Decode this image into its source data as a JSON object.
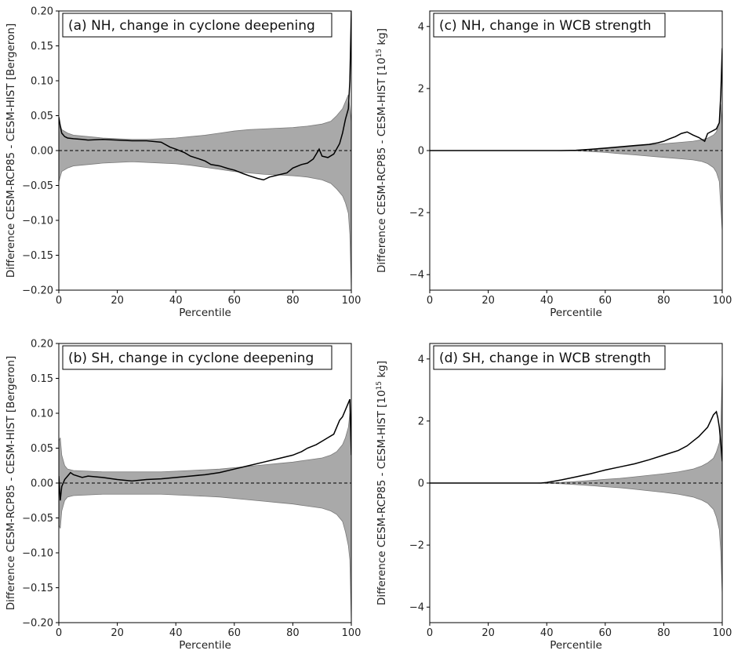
{
  "chart_data": [
    {
      "type": "line",
      "panel": "a",
      "title": "(a) NH, change in cyclone deepening",
      "xlabel": "Percentile",
      "ylabel": "Difference CESM-RCP85 - CESM-HIST [Bergeron]",
      "ylabel_sup": "",
      "ylabel_unit": "",
      "xlim": [
        0,
        100
      ],
      "ylim": [
        -0.2,
        0.2
      ],
      "xticks": [
        0,
        20,
        40,
        60,
        80,
        100
      ],
      "xtick_labels": [
        "0",
        "20",
        "40",
        "60",
        "80",
        "100"
      ],
      "yticks": [
        -0.2,
        -0.15,
        -0.1,
        -0.05,
        0.0,
        0.05,
        0.1,
        0.15,
        0.2
      ],
      "ytick_labels": [
        "−0.20",
        "−0.15",
        "−0.10",
        "−0.05",
        "0.00",
        "0.05",
        "0.10",
        "0.15",
        "0.20"
      ],
      "band": {
        "x": [
          0,
          1,
          3,
          5,
          10,
          15,
          20,
          25,
          30,
          35,
          40,
          45,
          50,
          55,
          60,
          65,
          70,
          75,
          80,
          85,
          90,
          93,
          95,
          97,
          98,
          99,
          99.5,
          100
        ],
        "upper": [
          0.045,
          0.03,
          0.025,
          0.022,
          0.02,
          0.018,
          0.017,
          0.016,
          0.016,
          0.017,
          0.018,
          0.02,
          0.022,
          0.025,
          0.028,
          0.03,
          0.031,
          0.032,
          0.033,
          0.035,
          0.038,
          0.042,
          0.05,
          0.06,
          0.07,
          0.08,
          0.06,
          0.04
        ],
        "lower": [
          -0.045,
          -0.03,
          -0.025,
          -0.022,
          -0.02,
          -0.018,
          -0.017,
          -0.016,
          -0.017,
          -0.018,
          -0.019,
          -0.021,
          -0.024,
          -0.027,
          -0.03,
          -0.032,
          -0.034,
          -0.035,
          -0.036,
          -0.038,
          -0.042,
          -0.047,
          -0.055,
          -0.065,
          -0.075,
          -0.09,
          -0.12,
          -0.2
        ]
      },
      "line": {
        "x": [
          0,
          0.5,
          1,
          2,
          3,
          5,
          8,
          10,
          15,
          20,
          25,
          30,
          35,
          38,
          40,
          43,
          45,
          48,
          50,
          52,
          55,
          58,
          60,
          63,
          65,
          68,
          70,
          72,
          75,
          78,
          80,
          83,
          85,
          87,
          88,
          89,
          90,
          92,
          94,
          96,
          97,
          98,
          99,
          99.5,
          100
        ],
        "y": [
          0.048,
          0.035,
          0.025,
          0.02,
          0.018,
          0.017,
          0.016,
          0.015,
          0.016,
          0.015,
          0.014,
          0.014,
          0.012,
          0.005,
          0.002,
          -0.003,
          -0.008,
          -0.012,
          -0.015,
          -0.02,
          -0.022,
          -0.026,
          -0.028,
          -0.033,
          -0.036,
          -0.04,
          -0.042,
          -0.038,
          -0.035,
          -0.032,
          -0.025,
          -0.02,
          -0.018,
          -0.012,
          -0.005,
          0.002,
          -0.008,
          -0.01,
          -0.005,
          0.01,
          0.025,
          0.045,
          0.06,
          0.1,
          0.2
        ]
      }
    },
    {
      "type": "line",
      "panel": "c",
      "title": "(c) NH, change in WCB strength",
      "xlabel": "Percentile",
      "ylabel": "Difference CESM-RCP85 - CESM-HIST [10",
      "ylabel_sup": "15",
      "ylabel_unit": " kg]",
      "xlim": [
        0,
        100
      ],
      "ylim": [
        -4.5,
        4.5
      ],
      "xticks": [
        0,
        20,
        40,
        60,
        80,
        100
      ],
      "xtick_labels": [
        "0",
        "20",
        "40",
        "60",
        "80",
        "100"
      ],
      "yticks": [
        -4,
        -2,
        0,
        2,
        4
      ],
      "ytick_labels": [
        "−4",
        "−2",
        "0",
        "2",
        "4"
      ],
      "band": {
        "x": [
          0,
          40,
          50,
          55,
          60,
          65,
          70,
          75,
          80,
          85,
          90,
          93,
          95,
          97,
          98,
          99,
          99.5,
          100
        ],
        "upper": [
          0.0,
          0.0,
          0.01,
          0.03,
          0.06,
          0.1,
          0.14,
          0.18,
          0.22,
          0.26,
          0.3,
          0.35,
          0.4,
          0.5,
          0.6,
          0.9,
          1.5,
          0.8
        ],
        "lower": [
          0.0,
          0.0,
          -0.01,
          -0.03,
          -0.06,
          -0.1,
          -0.14,
          -0.18,
          -0.22,
          -0.26,
          -0.3,
          -0.35,
          -0.42,
          -0.55,
          -0.7,
          -1.0,
          -1.8,
          -2.6
        ]
      },
      "line": {
        "x": [
          0,
          45,
          50,
          55,
          60,
          65,
          70,
          75,
          78,
          80,
          82,
          84,
          86,
          88,
          90,
          92,
          94,
          95,
          96,
          97,
          98,
          99,
          99.5,
          100
        ],
        "y": [
          0.0,
          0.0,
          0.01,
          0.04,
          0.08,
          0.12,
          0.16,
          0.2,
          0.25,
          0.3,
          0.38,
          0.45,
          0.55,
          0.6,
          0.5,
          0.42,
          0.3,
          0.55,
          0.6,
          0.65,
          0.7,
          0.9,
          1.8,
          3.3
        ]
      }
    },
    {
      "type": "line",
      "panel": "b",
      "title": "(b) SH, change in cyclone deepening",
      "xlabel": "Percentile",
      "ylabel": "Difference CESM-RCP85 - CESM-HIST [Bergeron]",
      "ylabel_sup": "",
      "ylabel_unit": "",
      "xlim": [
        0,
        100
      ],
      "ylim": [
        -0.2,
        0.2
      ],
      "xticks": [
        0,
        20,
        40,
        60,
        80,
        100
      ],
      "xtick_labels": [
        "0",
        "20",
        "40",
        "60",
        "80",
        "100"
      ],
      "yticks": [
        -0.2,
        -0.15,
        -0.1,
        -0.05,
        0.0,
        0.05,
        0.1,
        0.15,
        0.2
      ],
      "ytick_labels": [
        "−0.20",
        "−0.15",
        "−0.10",
        "−0.05",
        "0.00",
        "0.05",
        "0.10",
        "0.15",
        "0.20"
      ],
      "band": {
        "x": [
          0,
          0.5,
          1,
          2,
          3,
          5,
          10,
          15,
          20,
          25,
          30,
          35,
          40,
          45,
          50,
          55,
          60,
          65,
          70,
          75,
          80,
          85,
          90,
          93,
          95,
          97,
          98,
          99,
          99.5,
          100
        ],
        "upper": [
          0.06,
          0.065,
          0.04,
          0.025,
          0.02,
          0.018,
          0.017,
          0.016,
          0.016,
          0.016,
          0.016,
          0.016,
          0.017,
          0.018,
          0.019,
          0.02,
          0.022,
          0.024,
          0.026,
          0.028,
          0.03,
          0.033,
          0.036,
          0.04,
          0.045,
          0.055,
          0.065,
          0.08,
          0.1,
          0.04
        ],
        "lower": [
          -0.06,
          -0.065,
          -0.04,
          -0.025,
          -0.02,
          -0.018,
          -0.017,
          -0.016,
          -0.016,
          -0.016,
          -0.016,
          -0.016,
          -0.017,
          -0.018,
          -0.019,
          -0.02,
          -0.022,
          -0.024,
          -0.026,
          -0.028,
          -0.03,
          -0.033,
          -0.036,
          -0.04,
          -0.045,
          -0.055,
          -0.07,
          -0.09,
          -0.11,
          -0.2
        ]
      },
      "line": {
        "x": [
          0,
          0.5,
          1,
          2,
          3,
          4,
          5,
          8,
          10,
          15,
          20,
          25,
          30,
          35,
          40,
          45,
          50,
          55,
          60,
          63,
          65,
          70,
          75,
          80,
          83,
          85,
          88,
          90,
          92,
          94,
          95,
          96,
          97,
          98,
          99,
          99.5,
          100
        ],
        "y": [
          0.01,
          -0.025,
          -0.005,
          0.005,
          0.01,
          0.015,
          0.012,
          0.008,
          0.01,
          0.008,
          0.005,
          0.003,
          0.005,
          0.006,
          0.008,
          0.01,
          0.012,
          0.015,
          0.02,
          0.023,
          0.025,
          0.03,
          0.035,
          0.04,
          0.045,
          0.05,
          0.055,
          0.06,
          0.065,
          0.07,
          0.08,
          0.09,
          0.095,
          0.105,
          0.115,
          0.12,
          0.04
        ]
      }
    },
    {
      "type": "line",
      "panel": "d",
      "title": "(d) SH, change in WCB strength",
      "xlabel": "Percentile",
      "ylabel": "Difference CESM-RCP85 - CESM-HIST [10",
      "ylabel_sup": "15",
      "ylabel_unit": " kg]",
      "xlim": [
        0,
        100
      ],
      "ylim": [
        -4.5,
        4.5
      ],
      "xticks": [
        0,
        20,
        40,
        60,
        80,
        100
      ],
      "xtick_labels": [
        "0",
        "20",
        "40",
        "60",
        "80",
        "100"
      ],
      "yticks": [
        -4,
        -2,
        0,
        2,
        4
      ],
      "ytick_labels": [
        "−4",
        "−2",
        "0",
        "2",
        "4"
      ],
      "band": {
        "x": [
          0,
          35,
          40,
          45,
          50,
          55,
          60,
          65,
          70,
          75,
          80,
          85,
          90,
          93,
          95,
          97,
          98,
          99,
          99.5,
          100
        ],
        "upper": [
          0.0,
          0.0,
          0.01,
          0.02,
          0.05,
          0.08,
          0.12,
          0.15,
          0.2,
          0.25,
          0.3,
          0.36,
          0.45,
          0.55,
          0.65,
          0.8,
          1.0,
          1.3,
          1.8,
          3.6
        ],
        "lower": [
          0.0,
          0.0,
          -0.01,
          -0.02,
          -0.05,
          -0.08,
          -0.12,
          -0.15,
          -0.2,
          -0.25,
          -0.3,
          -0.36,
          -0.45,
          -0.55,
          -0.65,
          -0.85,
          -1.1,
          -1.5,
          -2.2,
          -3.6
        ]
      },
      "line": {
        "x": [
          0,
          38,
          40,
          45,
          50,
          55,
          60,
          65,
          70,
          75,
          80,
          85,
          88,
          90,
          92,
          94,
          95,
          96,
          97,
          98,
          98.5,
          99,
          99.5,
          100
        ],
        "y": [
          0.0,
          0.0,
          0.02,
          0.1,
          0.2,
          0.3,
          0.42,
          0.52,
          0.62,
          0.75,
          0.9,
          1.05,
          1.2,
          1.35,
          1.5,
          1.7,
          1.8,
          2.0,
          2.2,
          2.3,
          2.1,
          1.8,
          1.3,
          0.7
        ]
      }
    }
  ]
}
